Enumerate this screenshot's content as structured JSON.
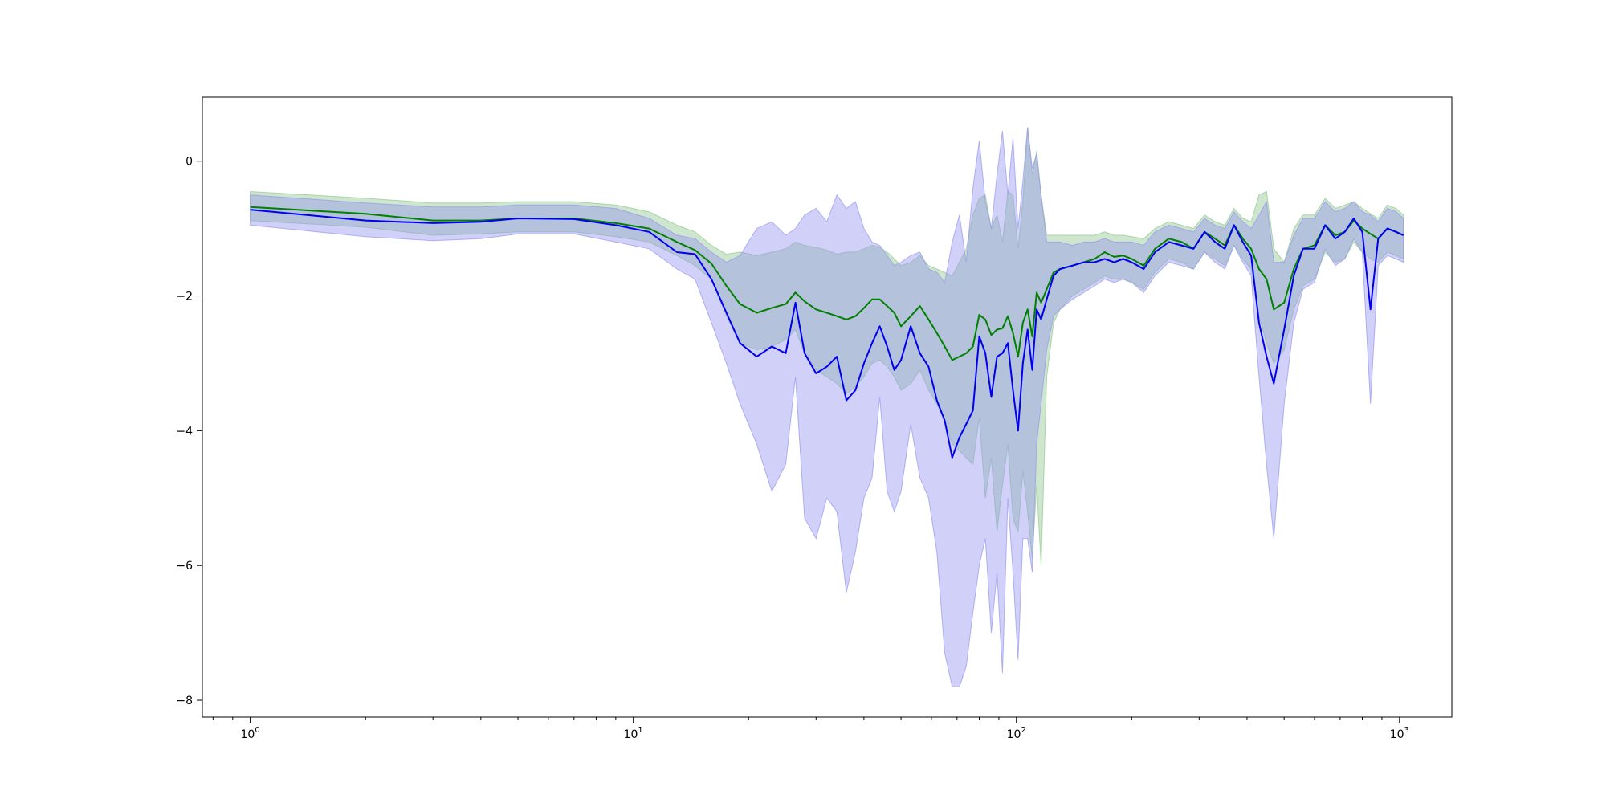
{
  "chart_data": {
    "type": "line",
    "title": "",
    "xlabel": "",
    "ylabel": "",
    "xscale": "log",
    "xlim": [
      0.75,
      1370
    ],
    "ylim": [
      -8.25,
      0.95
    ],
    "grid": false,
    "legend": "none",
    "x_ticks": [
      {
        "value": 1,
        "base": "10",
        "exp": "0"
      },
      {
        "value": 10,
        "base": "10",
        "exp": "1"
      },
      {
        "value": 100,
        "base": "10",
        "exp": "2"
      },
      {
        "value": 1000,
        "base": "10",
        "exp": "3"
      }
    ],
    "y_ticks": [
      {
        "value": 0,
        "label": "0"
      },
      {
        "value": -2,
        "label": "−2"
      },
      {
        "value": -4,
        "label": "−4"
      },
      {
        "value": -6,
        "label": "−6"
      },
      {
        "value": -8,
        "label": "−8"
      }
    ],
    "x": [
      1,
      2,
      3,
      4,
      5,
      7,
      9,
      11,
      13,
      14.5,
      16,
      17.5,
      19,
      21,
      23,
      25,
      26.5,
      28,
      30,
      32,
      34,
      36,
      38,
      40,
      42,
      44,
      46,
      48,
      50,
      53,
      56,
      59,
      62,
      65,
      68,
      71,
      74,
      77,
      80,
      83,
      86,
      89,
      92,
      95,
      98,
      101,
      104,
      107,
      110,
      113,
      116,
      120,
      125,
      130,
      140,
      150,
      160,
      170,
      180,
      190,
      200,
      215,
      230,
      250,
      270,
      290,
      310,
      330,
      350,
      370,
      390,
      410,
      430,
      450,
      470,
      500,
      530,
      560,
      600,
      640,
      680,
      720,
      760,
      800,
      840,
      880,
      930,
      980,
      1024
    ],
    "series": [
      {
        "color": "#008000",
        "band_color": "#90c890",
        "values": [
          -0.68,
          -0.78,
          -0.88,
          -0.88,
          -0.85,
          -0.85,
          -0.92,
          -1.0,
          -1.2,
          -1.32,
          -1.52,
          -1.85,
          -2.12,
          -2.25,
          -2.18,
          -2.12,
          -1.95,
          -2.08,
          -2.2,
          -2.25,
          -2.3,
          -2.35,
          -2.3,
          -2.18,
          -2.05,
          -2.05,
          -2.15,
          -2.25,
          -2.45,
          -2.3,
          -2.15,
          -2.35,
          -2.55,
          -2.75,
          -2.95,
          -2.9,
          -2.85,
          -2.75,
          -2.28,
          -2.35,
          -2.58,
          -2.5,
          -2.48,
          -2.3,
          -2.55,
          -2.9,
          -2.4,
          -2.2,
          -2.6,
          -1.95,
          -2.1,
          -1.9,
          -1.65,
          -1.6,
          -1.55,
          -1.5,
          -1.45,
          -1.35,
          -1.42,
          -1.4,
          -1.45,
          -1.55,
          -1.3,
          -1.15,
          -1.2,
          -1.3,
          -1.05,
          -1.15,
          -1.25,
          -0.95,
          -1.15,
          -1.3,
          -1.6,
          -1.75,
          -2.2,
          -2.1,
          -1.6,
          -1.3,
          -1.25,
          -0.95,
          -1.1,
          -1.05,
          -0.88,
          -1.0,
          -1.08,
          -1.15,
          -1.0,
          -1.05,
          -1.1
        ],
        "upper": [
          -0.45,
          -0.55,
          -0.62,
          -0.62,
          -0.6,
          -0.6,
          -0.65,
          -0.75,
          -0.95,
          -1.05,
          -1.25,
          -1.38,
          -1.35,
          -1.4,
          -1.35,
          -1.3,
          -1.2,
          -1.25,
          -1.28,
          -1.32,
          -1.38,
          -1.35,
          -1.35,
          -1.3,
          -1.25,
          -1.28,
          -1.35,
          -1.45,
          -1.55,
          -1.5,
          -1.4,
          -1.55,
          -1.6,
          -1.65,
          -1.7,
          -1.5,
          -1.3,
          -0.8,
          -0.55,
          -0.5,
          -1.0,
          -0.8,
          -1.2,
          -0.45,
          -0.5,
          -1.3,
          -0.6,
          0.5,
          -0.2,
          0.15,
          -0.5,
          -1.1,
          -1.1,
          -1.1,
          -1.1,
          -1.1,
          -1.1,
          -1.05,
          -1.1,
          -1.1,
          -1.12,
          -1.15,
          -1.0,
          -0.9,
          -0.95,
          -1.0,
          -0.8,
          -0.9,
          -0.95,
          -0.7,
          -0.85,
          -0.9,
          -0.5,
          -0.45,
          -1.3,
          -1.5,
          -1.0,
          -0.8,
          -0.8,
          -0.55,
          -0.7,
          -0.65,
          -0.6,
          -0.7,
          -0.78,
          -0.85,
          -0.65,
          -0.7,
          -0.8
        ],
        "lower": [
          -0.88,
          -0.98,
          -1.1,
          -1.08,
          -1.05,
          -1.05,
          -1.12,
          -1.2,
          -1.4,
          -1.55,
          -1.75,
          -2.3,
          -2.7,
          -2.8,
          -2.75,
          -2.65,
          -2.5,
          -2.85,
          -3.1,
          -3.2,
          -3.3,
          -3.45,
          -3.35,
          -3.2,
          -3.0,
          -2.95,
          -3.05,
          -3.2,
          -3.4,
          -3.3,
          -3.1,
          -3.4,
          -3.6,
          -3.85,
          -4.2,
          -4.3,
          -4.4,
          -4.5,
          -3.8,
          -5.0,
          -4.4,
          -5.5,
          -4.8,
          -4.2,
          -5.3,
          -5.5,
          -4.6,
          -5.2,
          -5.9,
          -4.8,
          -6.0,
          -3.2,
          -2.4,
          -2.2,
          -2.0,
          -1.9,
          -1.8,
          -1.7,
          -1.75,
          -1.75,
          -1.8,
          -1.9,
          -1.65,
          -1.45,
          -1.5,
          -1.6,
          -1.35,
          -1.45,
          -1.55,
          -1.25,
          -1.45,
          -1.6,
          -2.3,
          -2.7,
          -3.0,
          -2.8,
          -2.2,
          -1.85,
          -1.75,
          -1.35,
          -1.5,
          -1.45,
          -1.2,
          -1.35,
          -1.45,
          -1.5,
          -1.35,
          -1.4,
          -1.45
        ]
      },
      {
        "color": "#0000ee",
        "band_color": "#9696f0",
        "values": [
          -0.72,
          -0.88,
          -0.92,
          -0.9,
          -0.85,
          -0.86,
          -0.95,
          -1.05,
          -1.35,
          -1.38,
          -1.75,
          -2.25,
          -2.7,
          -2.9,
          -2.75,
          -2.85,
          -2.1,
          -2.85,
          -3.15,
          -3.05,
          -2.9,
          -3.55,
          -3.4,
          -3.0,
          -2.7,
          -2.45,
          -2.75,
          -3.1,
          -2.95,
          -2.45,
          -2.85,
          -3.05,
          -3.55,
          -3.85,
          -4.4,
          -4.1,
          -3.9,
          -3.7,
          -2.6,
          -2.85,
          -3.5,
          -2.9,
          -2.85,
          -2.7,
          -3.4,
          -4.0,
          -3.0,
          -2.5,
          -3.1,
          -2.2,
          -2.35,
          -2.05,
          -1.7,
          -1.6,
          -1.55,
          -1.5,
          -1.5,
          -1.45,
          -1.5,
          -1.45,
          -1.5,
          -1.6,
          -1.35,
          -1.2,
          -1.25,
          -1.3,
          -1.05,
          -1.2,
          -1.3,
          -0.95,
          -1.2,
          -1.4,
          -2.4,
          -2.9,
          -3.3,
          -2.5,
          -1.7,
          -1.3,
          -1.3,
          -0.95,
          -1.15,
          -1.05,
          -0.85,
          -1.05,
          -2.2,
          -1.15,
          -1.0,
          -1.05,
          -1.1
        ],
        "upper": [
          -0.5,
          -0.62,
          -0.68,
          -0.68,
          -0.65,
          -0.65,
          -0.7,
          -0.85,
          -1.1,
          -1.15,
          -1.35,
          -1.5,
          -1.4,
          -1.0,
          -0.9,
          -1.1,
          -1.0,
          -0.8,
          -0.7,
          -0.9,
          -0.5,
          -0.7,
          -0.6,
          -1.0,
          -1.2,
          -1.25,
          -1.4,
          -1.55,
          -1.5,
          -1.4,
          -1.35,
          -1.6,
          -1.65,
          -1.8,
          -1.2,
          -0.8,
          -1.5,
          -0.4,
          0.3,
          -0.6,
          -1.0,
          -0.2,
          0.45,
          -0.5,
          0.35,
          -1.0,
          -0.3,
          0.5,
          -0.1,
          0.1,
          -0.5,
          -1.2,
          -1.2,
          -1.2,
          -1.25,
          -1.2,
          -1.2,
          -1.15,
          -1.2,
          -1.2,
          -1.2,
          -1.25,
          -1.05,
          -0.95,
          -1.0,
          -1.05,
          -0.85,
          -0.95,
          -1.0,
          -0.75,
          -0.9,
          -1.0,
          -0.8,
          -0.6,
          -1.5,
          -1.5,
          -1.1,
          -0.85,
          -0.85,
          -0.6,
          -0.75,
          -0.7,
          -0.6,
          -0.75,
          -0.8,
          -0.9,
          -0.7,
          -0.75,
          -0.85
        ],
        "lower": [
          -0.95,
          -1.12,
          -1.18,
          -1.15,
          -1.08,
          -1.08,
          -1.2,
          -1.3,
          -1.6,
          -1.75,
          -2.4,
          -3.0,
          -3.6,
          -4.2,
          -4.9,
          -4.5,
          -3.2,
          -5.3,
          -5.6,
          -5.0,
          -5.2,
          -6.4,
          -5.8,
          -5.0,
          -4.7,
          -3.5,
          -4.9,
          -5.2,
          -4.9,
          -3.9,
          -4.7,
          -5.0,
          -5.8,
          -7.3,
          -7.8,
          -7.8,
          -7.5,
          -6.7,
          -6.0,
          -5.6,
          -7.0,
          -6.1,
          -7.6,
          -5.0,
          -6.1,
          -7.4,
          -5.6,
          -5.6,
          -6.1,
          -4.2,
          -3.6,
          -2.8,
          -2.3,
          -2.2,
          -2.05,
          -1.95,
          -1.85,
          -1.75,
          -1.8,
          -1.75,
          -1.8,
          -1.95,
          -1.7,
          -1.5,
          -1.55,
          -1.6,
          -1.35,
          -1.5,
          -1.6,
          -1.25,
          -1.5,
          -1.7,
          -3.2,
          -4.5,
          -5.6,
          -3.6,
          -2.4,
          -1.9,
          -1.8,
          -1.3,
          -1.55,
          -1.45,
          -1.15,
          -1.35,
          -3.6,
          -1.55,
          -1.4,
          -1.45,
          -1.5
        ]
      }
    ]
  }
}
